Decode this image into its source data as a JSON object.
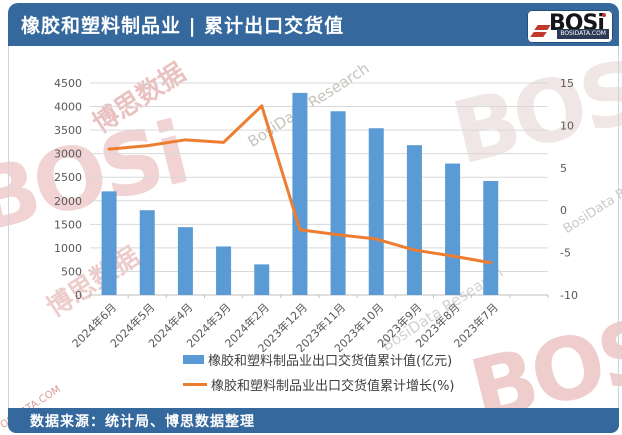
{
  "header": {
    "title": "橡胶和塑料制品业 | 累计出口交货值",
    "logo": {
      "brand": "BOSi",
      "domain": "BOSIDATA.COM"
    }
  },
  "footer": {
    "source": "数据来源：统计局、博思数据整理"
  },
  "watermarks": {
    "brand": "BOSi",
    "brand_cn": "博思数据",
    "research": "BosiData Research",
    "domain": "OSIDATA.COM"
  },
  "colors": {
    "bar": "#5b9bd5",
    "line": "#ed7d31",
    "header_bg": "#35689c",
    "axis_text": "#595959",
    "gridline": "#d9d9d9",
    "axis_line": "#bfbfbf"
  },
  "chart_data": {
    "type": "bar",
    "subtype": "bar+line combo, dual y-axes",
    "title": "橡胶和塑料制品业 | 累计出口交货值",
    "categories": [
      "2024年6月",
      "2024年5月",
      "2024年4月",
      "2024年3月",
      "2024年2月",
      "2023年12月",
      "2023年11月",
      "2023年10月",
      "2023年9月",
      "2023年8月",
      "2023年7月"
    ],
    "series": [
      {
        "name": "橡胶和塑料制品业出口交货值累计值(亿元)",
        "type": "bar",
        "axis": "left",
        "color": "#5b9bd5",
        "values": [
          2200,
          1800,
          1440,
          1030,
          650,
          4290,
          3900,
          3540,
          3180,
          2790,
          2420
        ]
      },
      {
        "name": "橡胶和塑料制品业出口交货值累计增长(%)",
        "type": "line",
        "axis": "right",
        "color": "#ed7d31",
        "values": [
          7.2,
          7.6,
          8.3,
          8.0,
          12.3,
          -2.3,
          -2.9,
          -3.4,
          -4.7,
          -5.4,
          -6.2
        ]
      }
    ],
    "y_left": {
      "min": 0,
      "max": 4500,
      "step": 500,
      "ticks": [
        "0",
        "500",
        "1000",
        "1500",
        "2000",
        "2500",
        "3000",
        "3500",
        "4000",
        "4500"
      ]
    },
    "y_right": {
      "min": -10,
      "max": 15,
      "step": 5,
      "ticks": [
        "-10",
        "-5",
        "0",
        "5",
        "10",
        "15"
      ]
    },
    "slot_count": 12,
    "grid": true,
    "legend_position": "bottom",
    "x_label_rotation": -45
  }
}
